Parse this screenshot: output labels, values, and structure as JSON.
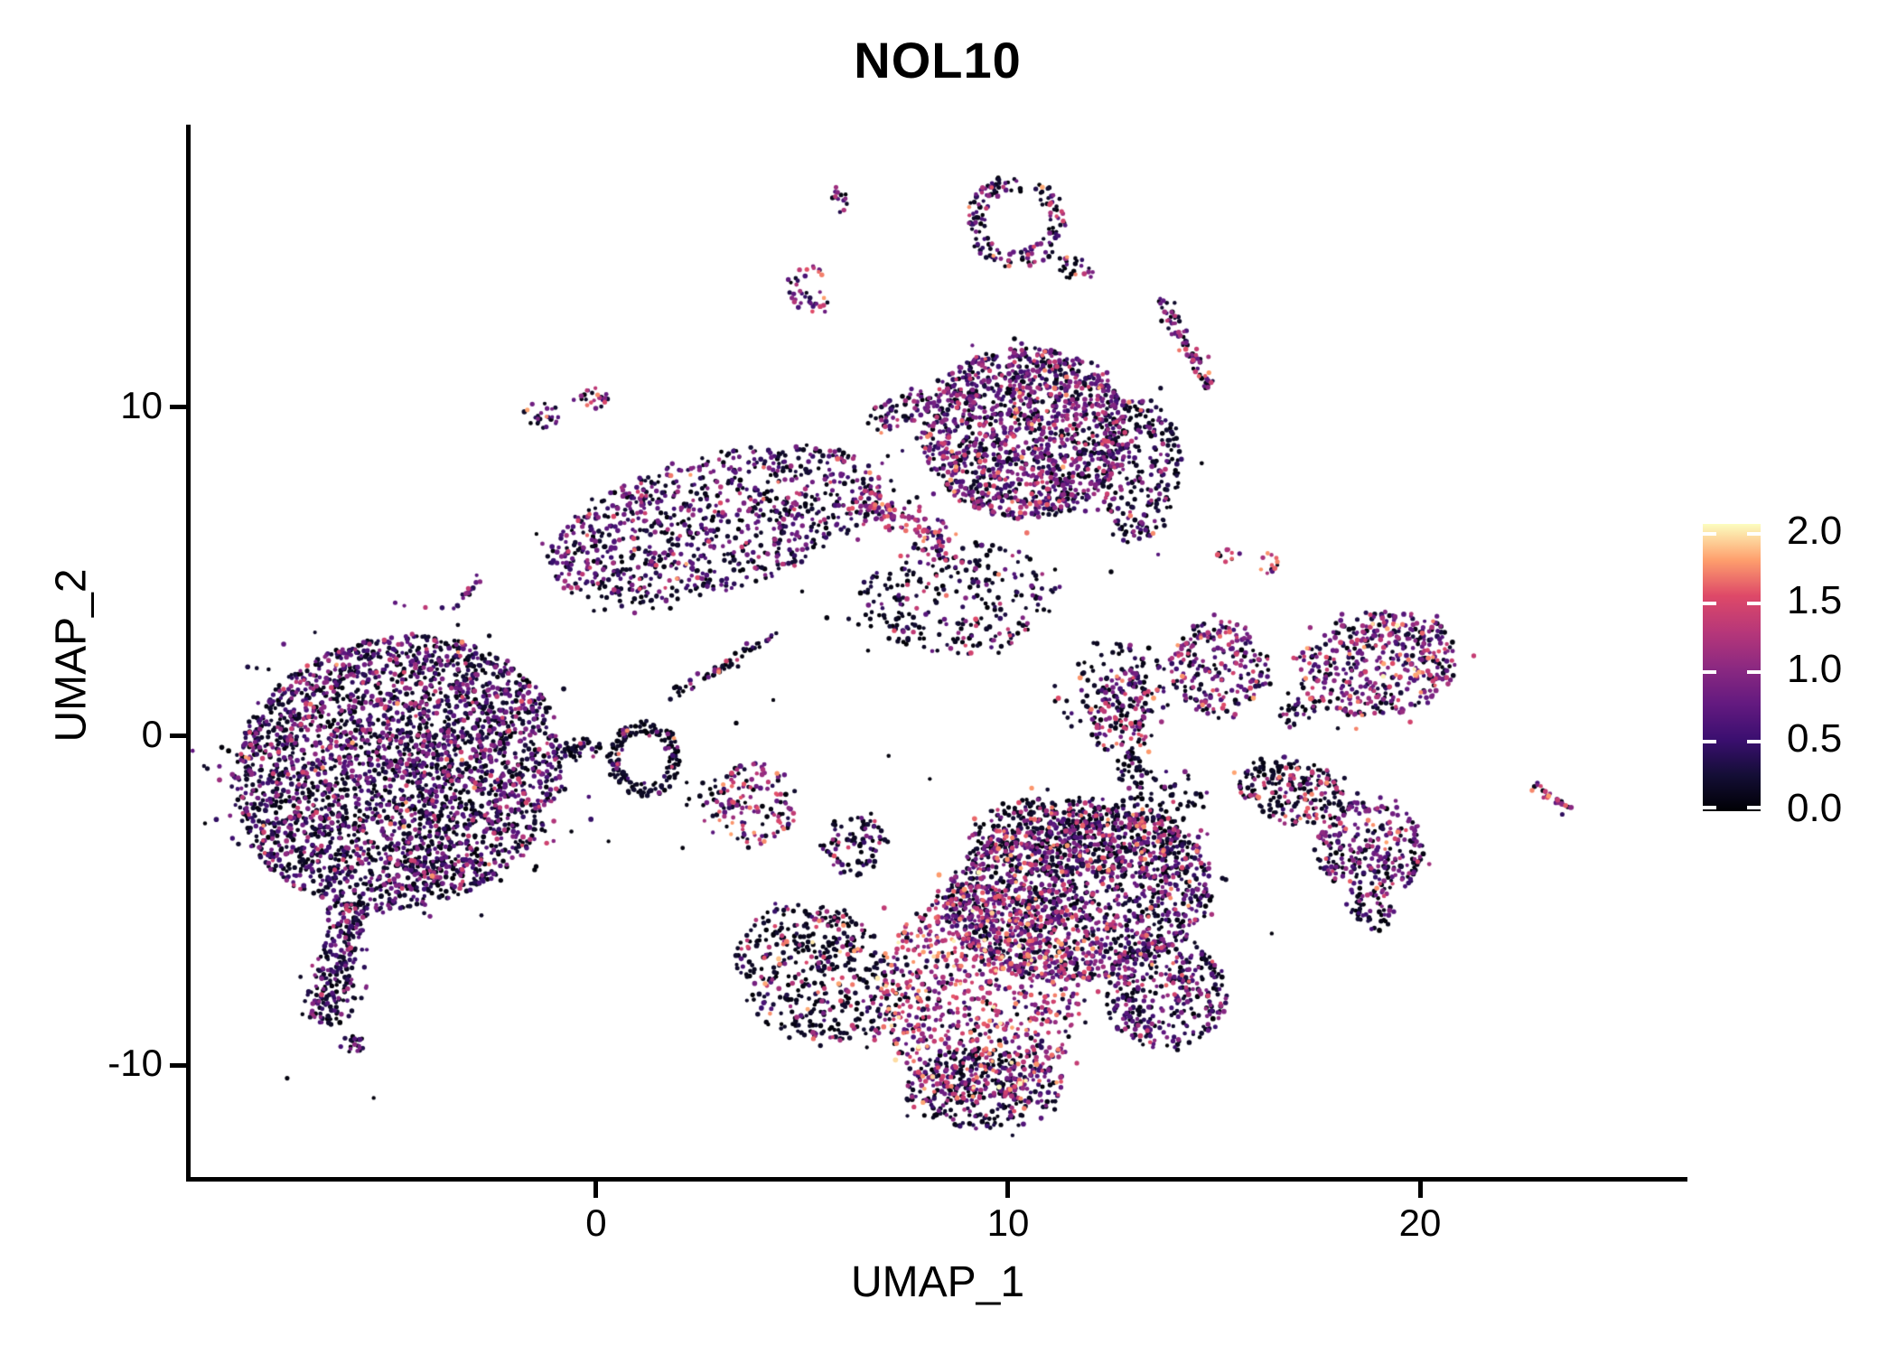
{
  "title": "NOL10",
  "axes": {
    "x": {
      "label": "UMAP_1",
      "ticks": [
        {
          "value": 0,
          "label": "0"
        },
        {
          "value": 10,
          "label": "10"
        },
        {
          "value": 20,
          "label": "20"
        }
      ]
    },
    "y": {
      "label": "UMAP_2",
      "ticks": [
        {
          "value": -10,
          "label": "-10"
        },
        {
          "value": 0,
          "label": "0"
        },
        {
          "value": 10,
          "label": "10"
        }
      ]
    }
  },
  "colorbar": {
    "vmin": 0.0,
    "vmax": 2.07,
    "ticks": [
      {
        "value": 0.0,
        "label": "0.0"
      },
      {
        "value": 0.5,
        "label": "0.5"
      },
      {
        "value": 1.0,
        "label": "1.0"
      },
      {
        "value": 1.5,
        "label": "1.5"
      },
      {
        "value": 2.0,
        "label": "2.0"
      }
    ],
    "palette_name": "magma",
    "gradient_stops": [
      {
        "t": 0.0,
        "color": "#000004"
      },
      {
        "t": 0.125,
        "color": "#140e36"
      },
      {
        "t": 0.25,
        "color": "#3b0f70"
      },
      {
        "t": 0.375,
        "color": "#641a80"
      },
      {
        "t": 0.5,
        "color": "#8c2981"
      },
      {
        "t": 0.625,
        "color": "#b73779"
      },
      {
        "t": 0.75,
        "color": "#de4968"
      },
      {
        "t": 0.875,
        "color": "#fe9f6d"
      },
      {
        "t": 1.0,
        "color": "#fcfdbf"
      }
    ]
  },
  "chart_data": {
    "type": "scatter",
    "title": "NOL10",
    "xlabel": "UMAP_1",
    "ylabel": "UMAP_2",
    "xlim": [
      -9.91,
      26.49
    ],
    "ylim": [
      -13.46,
      18.54
    ],
    "grid": false,
    "legend_position": "right",
    "point_radius_px": 2.4,
    "value_bins": {
      "black": [
        0.0,
        0.25
      ],
      "dpurple": [
        0.3,
        0.6
      ],
      "purple": [
        0.6,
        1.05
      ],
      "pink": [
        1.1,
        1.5
      ],
      "orange": [
        1.5,
        1.85
      ],
      "cream": [
        1.9,
        2.07
      ]
    },
    "clusters": [
      {
        "name": "top-tiny",
        "shape": "blob",
        "cx": 5.92,
        "cy": 16.37,
        "rx": 0.22,
        "ry": 0.46,
        "rot": 0,
        "n": 14,
        "mix": [
          0.3,
          0.1,
          0.35,
          0.2,
          0.05,
          0
        ]
      },
      {
        "name": "top-small",
        "shape": "blob",
        "cx": 5.15,
        "cy": 13.62,
        "rx": 0.55,
        "ry": 0.72,
        "rot": 0,
        "n": 38,
        "mix": [
          0.25,
          0.08,
          0.33,
          0.2,
          0.13,
          0.01
        ]
      },
      {
        "name": "loop-ring",
        "shape": "ring",
        "cx": 10.2,
        "cy": 15.68,
        "rx": 1.21,
        "ry": 1.45,
        "rot": 0,
        "n": 155,
        "mix": [
          0.5,
          0.13,
          0.25,
          0.09,
          0.03,
          0
        ]
      },
      {
        "name": "loop-tail",
        "shape": "blob",
        "cx": 11.62,
        "cy": 14.22,
        "rx": 0.5,
        "ry": 0.35,
        "rot": 20,
        "n": 25,
        "mix": [
          0.6,
          0.1,
          0.2,
          0.08,
          0.02,
          0
        ]
      },
      {
        "name": "ne-chain",
        "shape": "stick",
        "cx": 14.3,
        "cy": 11.97,
        "rx": 1.23,
        "ry": 0.28,
        "rot": 61,
        "n": 75,
        "mix": [
          0.3,
          0.12,
          0.33,
          0.18,
          0.07,
          0
        ]
      },
      {
        "name": "pair-a",
        "shape": "blob",
        "cx": -1.32,
        "cy": 9.77,
        "rx": 0.45,
        "ry": 0.4,
        "rot": 0,
        "n": 24,
        "mix": [
          0.35,
          0.1,
          0.35,
          0.12,
          0.08,
          0
        ]
      },
      {
        "name": "pair-b",
        "shape": "blob",
        "cx": -0.11,
        "cy": 10.26,
        "rx": 0.45,
        "ry": 0.35,
        "rot": -15,
        "n": 22,
        "mix": [
          0.3,
          0.1,
          0.35,
          0.15,
          0.1,
          0
        ]
      },
      {
        "name": "west-streak",
        "shape": "stick",
        "cx": -3.14,
        "cy": 4.35,
        "rx": 0.55,
        "ry": 0.14,
        "rot": -53,
        "n": 15,
        "mix": [
          0.3,
          0.15,
          0.45,
          0.05,
          0.05,
          0
        ]
      },
      {
        "name": "small-mid-top",
        "shape": "blob",
        "cx": 1.03,
        "cy": 7.24,
        "rx": 0.32,
        "ry": 0.32,
        "rot": 0,
        "n": 18,
        "mix": [
          0.3,
          0.15,
          0.4,
          0.15,
          0,
          0
        ]
      },
      {
        "name": "small-mid-top-dots",
        "shape": "blob",
        "cx": 1.64,
        "cy": 6.33,
        "rx": 0.35,
        "ry": 0.25,
        "rot": 0,
        "n": 5,
        "mix": [
          1,
          0,
          0,
          0,
          0,
          0
        ]
      },
      {
        "name": "upper-left-lobe",
        "shape": "blob",
        "cx": 2.85,
        "cy": 6.46,
        "rx": 4.17,
        "ry": 2.06,
        "rot": -15,
        "n": 950,
        "mix": [
          0.45,
          0.16,
          0.3,
          0.07,
          0.02,
          0
        ]
      },
      {
        "name": "upper-finger",
        "shape": "blob",
        "cx": 7.46,
        "cy": 10.04,
        "rx": 0.99,
        "ry": 0.5,
        "rot": -30,
        "n": 60,
        "mix": [
          0.4,
          0.15,
          0.3,
          0.12,
          0.03,
          0
        ]
      },
      {
        "name": "upper-round-blob",
        "shape": "blob",
        "cx": 10.42,
        "cy": 9.22,
        "rx": 2.52,
        "ry": 2.61,
        "rot": 0,
        "n": 1450,
        "mix": [
          0.33,
          0.15,
          0.37,
          0.12,
          0.03,
          0
        ]
      },
      {
        "name": "upper-dark-east-edge",
        "shape": "blob",
        "cx": 13.2,
        "cy": 8.12,
        "rx": 0.99,
        "ry": 2.2,
        "rot": 0,
        "n": 260,
        "mix": [
          0.6,
          0.15,
          0.2,
          0.04,
          0.01,
          0
        ]
      },
      {
        "name": "pink-band",
        "shape": "stick",
        "cx": 7.46,
        "cy": 6.6,
        "rx": 1.3,
        "ry": 0.5,
        "rot": 28,
        "n": 130,
        "mix": [
          0.15,
          0.07,
          0.25,
          0.38,
          0.14,
          0.01
        ]
      },
      {
        "name": "stem-scatter",
        "shape": "blob",
        "cx": 8.77,
        "cy": 4.26,
        "rx": 2.41,
        "ry": 1.79,
        "rot": 0,
        "n": 290,
        "mix": [
          0.66,
          0.1,
          0.14,
          0.08,
          0.02,
          0
        ]
      },
      {
        "name": "stem-scatter-east",
        "shape": "blob",
        "cx": 12.5,
        "cy": 1.5,
        "rx": 1.5,
        "ry": 1.4,
        "rot": 0,
        "n": 90,
        "mix": [
          0.72,
          0.08,
          0.12,
          0.06,
          0.02,
          0
        ]
      },
      {
        "name": "diag-bridge",
        "shape": "stick",
        "cx": 3.07,
        "cy": 2.15,
        "rx": 1.56,
        "ry": 0.17,
        "rot": -32,
        "n": 58,
        "mix": [
          0.78,
          0.08,
          0.1,
          0.03,
          0.01,
          0
        ]
      },
      {
        "name": "left-main",
        "shape": "blob",
        "cx": -4.82,
        "cy": -1.1,
        "rx": 4.06,
        "ry": 4.13,
        "rot": -12,
        "n": 3200,
        "mix": [
          0.48,
          0.16,
          0.27,
          0.08,
          0.01,
          0
        ]
      },
      {
        "name": "left-tail",
        "shape": "stick",
        "cx": -6.25,
        "cy": -6.88,
        "rx": 1.54,
        "ry": 0.72,
        "rot": 104,
        "n": 270,
        "mix": [
          0.52,
          0.18,
          0.25,
          0.05,
          0,
          0
        ]
      },
      {
        "name": "left-tail-spike",
        "shape": "blob",
        "cx": -5.92,
        "cy": -9.35,
        "rx": 0.3,
        "ry": 0.3,
        "rot": 0,
        "n": 20,
        "mix": [
          0.5,
          0.2,
          0.3,
          0,
          0,
          0
        ]
      },
      {
        "name": "left-small-below",
        "shape": "blob",
        "cx": -4.06,
        "cy": -3.8,
        "rx": 0.61,
        "ry": 0.5,
        "rot": 0,
        "n": 36,
        "mix": [
          0.45,
          0.1,
          0.25,
          0.12,
          0.08,
          0
        ]
      },
      {
        "name": "hook-ring",
        "shape": "ring",
        "cx": 1.16,
        "cy": -0.69,
        "rx": 0.92,
        "ry": 1.16,
        "rot": 0,
        "n": 175,
        "mix": [
          0.8,
          0.06,
          0.08,
          0.05,
          0.01,
          0
        ]
      },
      {
        "name": "hook-bridge",
        "shape": "blob",
        "cx": -0.33,
        "cy": -0.36,
        "rx": 0.55,
        "ry": 0.3,
        "rot": 0,
        "n": 36,
        "mix": [
          0.85,
          0.05,
          0.08,
          0.02,
          0,
          0
        ]
      },
      {
        "name": "mid-colorful",
        "shape": "blob",
        "cx": 3.84,
        "cy": -2.06,
        "rx": 1.05,
        "ry": 1.24,
        "rot": 0,
        "n": 135,
        "mix": [
          0.38,
          0.08,
          0.26,
          0.17,
          0.1,
          0.01
        ]
      },
      {
        "name": "mid-dark",
        "shape": "blob",
        "cx": 6.25,
        "cy": -3.3,
        "rx": 0.77,
        "ry": 0.96,
        "rot": 0,
        "n": 85,
        "mix": [
          0.6,
          0.12,
          0.2,
          0.06,
          0.02,
          0
        ]
      },
      {
        "name": "mid-sparse-dots",
        "shape": "blob",
        "cx": 2.6,
        "cy": -1.8,
        "rx": 0.5,
        "ry": 0.8,
        "rot": 0,
        "n": 12,
        "mix": [
          0.82,
          0.08,
          0.07,
          0.025,
          0.005,
          0
        ]
      },
      {
        "name": "bottom-right-purple",
        "shape": "blob",
        "cx": 11.73,
        "cy": -4.81,
        "rx": 3.29,
        "ry": 2.61,
        "rot": -8,
        "n": 1550,
        "mix": [
          0.4,
          0.14,
          0.33,
          0.1,
          0.03,
          0
        ]
      },
      {
        "name": "bottom-top-band",
        "shape": "blob",
        "cx": 11.62,
        "cy": -3.03,
        "rx": 2.63,
        "ry": 1.24,
        "rot": 0,
        "n": 420,
        "mix": [
          0.6,
          0.06,
          0.1,
          0.16,
          0.08,
          0
        ]
      },
      {
        "name": "bottom-left-wing",
        "shape": "blob",
        "cx": 5.37,
        "cy": -7.29,
        "rx": 2.08,
        "ry": 2.06,
        "rot": 25,
        "n": 470,
        "mix": [
          0.72,
          0.04,
          0.06,
          0.11,
          0.06,
          0.01
        ]
      },
      {
        "name": "bottom-bright-center",
        "shape": "blob",
        "cx": 9.32,
        "cy": -7.84,
        "rx": 2.41,
        "ry": 3.3,
        "rot": 0,
        "n": 950,
        "mix": [
          0.17,
          0.07,
          0.25,
          0.31,
          0.17,
          0.03
        ]
      },
      {
        "name": "bottom-dark-rim",
        "shape": "blob",
        "cx": 9.43,
        "cy": -10.73,
        "rx": 1.97,
        "ry": 1.24,
        "rot": 0,
        "n": 310,
        "mix": [
          0.55,
          0.15,
          0.22,
          0.06,
          0.02,
          0
        ]
      },
      {
        "name": "bottom-right-lower",
        "shape": "blob",
        "cx": 13.82,
        "cy": -7.84,
        "rx": 1.54,
        "ry": 1.65,
        "rot": 0,
        "n": 360,
        "mix": [
          0.42,
          0.15,
          0.3,
          0.1,
          0.03,
          0
        ]
      },
      {
        "name": "bridge-to-bird",
        "shape": "blob",
        "cx": 13.82,
        "cy": -1.79,
        "rx": 0.88,
        "ry": 0.88,
        "rot": 0,
        "n": 60,
        "mix": [
          0.8,
          0.06,
          0.1,
          0.03,
          0.01,
          0
        ]
      },
      {
        "name": "mid-right-cluster",
        "shape": "blob",
        "cx": 12.76,
        "cy": 0.69,
        "rx": 0.83,
        "ry": 1.38,
        "rot": 0,
        "n": 145,
        "mix": [
          0.32,
          0.1,
          0.3,
          0.2,
          0.08,
          0
        ]
      },
      {
        "name": "mid-right-chain",
        "shape": "blob",
        "cx": 12.94,
        "cy": -1.02,
        "rx": 0.35,
        "ry": 0.45,
        "rot": 0,
        "n": 25,
        "mix": [
          0.7,
          0.1,
          0.15,
          0.05,
          0,
          0
        ]
      },
      {
        "name": "right-cluster-west",
        "shape": "blob",
        "cx": 15.13,
        "cy": 2.06,
        "rx": 1.21,
        "ry": 1.51,
        "rot": 0,
        "n": 230,
        "mix": [
          0.34,
          0.1,
          0.3,
          0.18,
          0.08,
          0
        ]
      },
      {
        "name": "right-cluster-main",
        "shape": "blob",
        "cx": 18.97,
        "cy": 2.2,
        "rx": 1.97,
        "ry": 1.6,
        "rot": -8,
        "n": 470,
        "mix": [
          0.26,
          0.1,
          0.36,
          0.21,
          0.06,
          0.01
        ]
      },
      {
        "name": "right-cluster-tail",
        "shape": "blob",
        "cx": 17.04,
        "cy": 0.74,
        "rx": 0.5,
        "ry": 0.4,
        "rot": -30,
        "n": 32,
        "mix": [
          0.6,
          0.1,
          0.2,
          0.07,
          0.03,
          0
        ]
      },
      {
        "name": "small-orange-a",
        "shape": "blob",
        "cx": 15.35,
        "cy": 5.5,
        "rx": 0.28,
        "ry": 0.22,
        "rot": 0,
        "n": 11,
        "mix": [
          0.4,
          0,
          0.2,
          0.2,
          0.2,
          0
        ]
      },
      {
        "name": "small-orange-b",
        "shape": "blob",
        "cx": 16.36,
        "cy": 5.23,
        "rx": 0.25,
        "ry": 0.35,
        "rot": 0,
        "n": 13,
        "mix": [
          0.35,
          0.05,
          0.25,
          0.15,
          0.2,
          0
        ]
      },
      {
        "name": "bird-body",
        "shape": "blob",
        "cx": 18.79,
        "cy": -3.44,
        "rx": 1.32,
        "ry": 1.51,
        "rot": 0,
        "n": 290,
        "mix": [
          0.35,
          0.15,
          0.38,
          0.09,
          0.03,
          0
        ]
      },
      {
        "name": "bird-beak",
        "shape": "blob",
        "cx": 18.86,
        "cy": -5.36,
        "rx": 0.6,
        "ry": 0.5,
        "rot": 30,
        "n": 42,
        "mix": [
          0.55,
          0.15,
          0.25,
          0.04,
          0.01,
          0
        ]
      },
      {
        "name": "bird-wing",
        "shape": "blob",
        "cx": 16.89,
        "cy": -1.65,
        "rx": 1.32,
        "ry": 1.05,
        "rot": 15,
        "n": 230,
        "mix": [
          0.62,
          0.04,
          0.08,
          0.17,
          0.09,
          0
        ]
      },
      {
        "name": "tiny-far-right",
        "shape": "stick",
        "cx": 23.18,
        "cy": -1.93,
        "rx": 0.53,
        "ry": 0.25,
        "rot": 39,
        "n": 24,
        "mix": [
          0.12,
          0.08,
          0.45,
          0.3,
          0.05,
          0
        ]
      }
    ],
    "noise_points": [
      [
        2.1,
        -3.4
      ],
      [
        2.6,
        -2.1
      ],
      [
        0.3,
        -3.2
      ],
      [
        -0.6,
        -2.9
      ],
      [
        5.0,
        4.4
      ],
      [
        5.6,
        3.6
      ],
      [
        6.6,
        2.6
      ],
      [
        4.3,
        1.1
      ],
      [
        3.4,
        0.4
      ],
      [
        7.1,
        -0.6
      ],
      [
        8.1,
        -1.3
      ],
      [
        12.9,
        5.9
      ],
      [
        12.5,
        5.0
      ],
      [
        14.7,
        8.3
      ],
      [
        16.4,
        -6.0
      ],
      [
        -7.5,
        -10.4
      ],
      [
        -5.4,
        -11.0
      ],
      [
        0.9,
        5.5
      ],
      [
        1.7,
        6.2
      ],
      [
        13.4,
        9.9
      ],
      [
        12.2,
        10.6
      ]
    ]
  }
}
